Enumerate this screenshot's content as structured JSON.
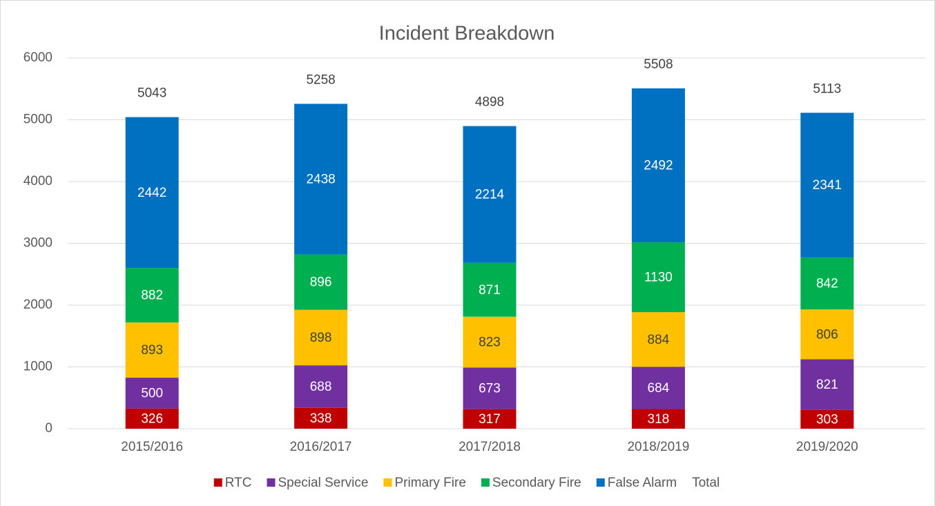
{
  "chart_data": {
    "type": "stacked-bar",
    "title": "Incident Breakdown",
    "categories": [
      "2015/2016",
      "2016/2017",
      "2017/2018",
      "2018/2019",
      "2019/2020"
    ],
    "series": [
      {
        "name": "RTC",
        "color": "#c00000",
        "label_color": "#ffffff",
        "values": [
          326,
          338,
          317,
          318,
          303
        ]
      },
      {
        "name": "Special Service",
        "color": "#7030a0",
        "label_color": "#ffffff",
        "values": [
          500,
          688,
          673,
          684,
          821
        ]
      },
      {
        "name": "Primary Fire",
        "color": "#ffc000",
        "label_color": "#404040",
        "values": [
          893,
          898,
          823,
          884,
          806
        ]
      },
      {
        "name": "Secondary Fire",
        "color": "#00b050",
        "label_color": "#ffffff",
        "values": [
          882,
          896,
          871,
          1130,
          842
        ]
      },
      {
        "name": "False Alarm",
        "color": "#0070c0",
        "label_color": "#ffffff",
        "values": [
          2442,
          2438,
          2214,
          2492,
          2341
        ]
      },
      {
        "name": "Total",
        "color": null,
        "label_color": "#404040",
        "values": [
          5043,
          5258,
          4898,
          5508,
          5113
        ]
      }
    ],
    "ylim": [
      0,
      6000
    ],
    "yticks": [
      0,
      1000,
      2000,
      3000,
      4000,
      5000,
      6000
    ],
    "grid": true,
    "legend": "bottom"
  }
}
